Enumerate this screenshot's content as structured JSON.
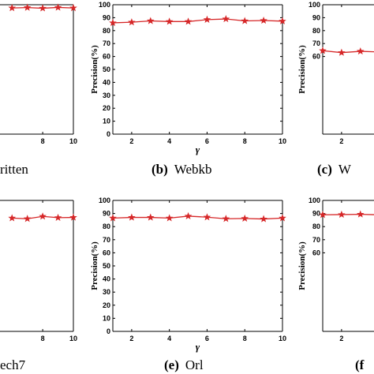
{
  "chart_data": [
    {
      "type": "line",
      "panel_id": "a",
      "caption_letter": "",
      "caption_name": "ritten",
      "ylabel": "",
      "xlabel": "",
      "xlim": [
        1,
        10
      ],
      "ylim": [
        0,
        100
      ],
      "x_ticks": [
        8,
        10
      ],
      "y_ticks": [],
      "x": [
        6,
        7,
        8,
        9,
        10
      ],
      "series": [
        {
          "values": [
            97.5,
            97.8,
            97.3,
            97.9,
            97.5
          ],
          "color": "#d62728"
        }
      ]
    },
    {
      "type": "line",
      "panel_id": "b",
      "caption_letter": "(b)",
      "caption_name": "Webkb",
      "ylabel": "Precision(%)",
      "xlabel": "γ",
      "xlim": [
        1,
        10
      ],
      "ylim": [
        0,
        100
      ],
      "x_ticks": [
        2,
        4,
        6,
        8,
        10
      ],
      "y_ticks": [
        0,
        10,
        20,
        30,
        40,
        50,
        60,
        70,
        80,
        90,
        100
      ],
      "x": [
        1,
        2,
        3,
        4,
        5,
        6,
        7,
        8,
        9,
        10
      ],
      "series": [
        {
          "values": [
            86,
            86.5,
            87.5,
            87,
            87,
            88.5,
            89,
            87.5,
            87.8,
            87.3
          ],
          "color": "#d62728"
        }
      ]
    },
    {
      "type": "line",
      "panel_id": "c",
      "caption_letter": "(c)",
      "caption_name": "W",
      "ylabel": "Precision(%)",
      "xlabel": "",
      "xlim": [
        1,
        10
      ],
      "ylim": [
        0,
        100
      ],
      "x_ticks": [
        2
      ],
      "y_ticks": [
        60,
        70,
        80,
        90,
        100
      ],
      "x": [
        1,
        2,
        3,
        4
      ],
      "series": [
        {
          "values": [
            64.5,
            63,
            64,
            63.5
          ],
          "color": "#d62728"
        }
      ]
    },
    {
      "type": "line",
      "panel_id": "d",
      "caption_letter": "",
      "caption_name": "ech7",
      "ylabel": "",
      "xlabel": "",
      "xlim": [
        1,
        10
      ],
      "ylim": [
        0,
        100
      ],
      "x_ticks": [
        8,
        10
      ],
      "y_ticks": [],
      "x": [
        6,
        7,
        8,
        9,
        10
      ],
      "series": [
        {
          "values": [
            86.5,
            86,
            87.8,
            86.8,
            87
          ],
          "color": "#d62728"
        }
      ]
    },
    {
      "type": "line",
      "panel_id": "e",
      "caption_letter": "(e)",
      "caption_name": "Orl",
      "ylabel": "Precision(%)",
      "xlabel": "γ",
      "xlim": [
        1,
        10
      ],
      "ylim": [
        0,
        100
      ],
      "x_ticks": [
        2,
        4,
        6,
        8,
        10
      ],
      "y_ticks": [
        0,
        10,
        20,
        30,
        40,
        50,
        60,
        70,
        80,
        90,
        100
      ],
      "x": [
        1,
        2,
        3,
        4,
        5,
        6,
        7,
        8,
        9,
        10
      ],
      "series": [
        {
          "values": [
            86.5,
            87,
            87,
            86.5,
            88,
            87.2,
            86,
            86.2,
            85.8,
            86.5
          ],
          "color": "#d62728"
        }
      ]
    },
    {
      "type": "line",
      "panel_id": "f",
      "caption_letter": "(f",
      "caption_name": "",
      "ylabel": "Precision(%)",
      "xlabel": "",
      "xlim": [
        1,
        10
      ],
      "ylim": [
        0,
        100
      ],
      "x_ticks": [
        2
      ],
      "y_ticks": [
        60,
        70,
        80,
        90,
        100
      ],
      "x": [
        1,
        2,
        3,
        4
      ],
      "series": [
        {
          "values": [
            89,
            89.2,
            89.4,
            89
          ],
          "color": "#d62728"
        }
      ]
    }
  ]
}
